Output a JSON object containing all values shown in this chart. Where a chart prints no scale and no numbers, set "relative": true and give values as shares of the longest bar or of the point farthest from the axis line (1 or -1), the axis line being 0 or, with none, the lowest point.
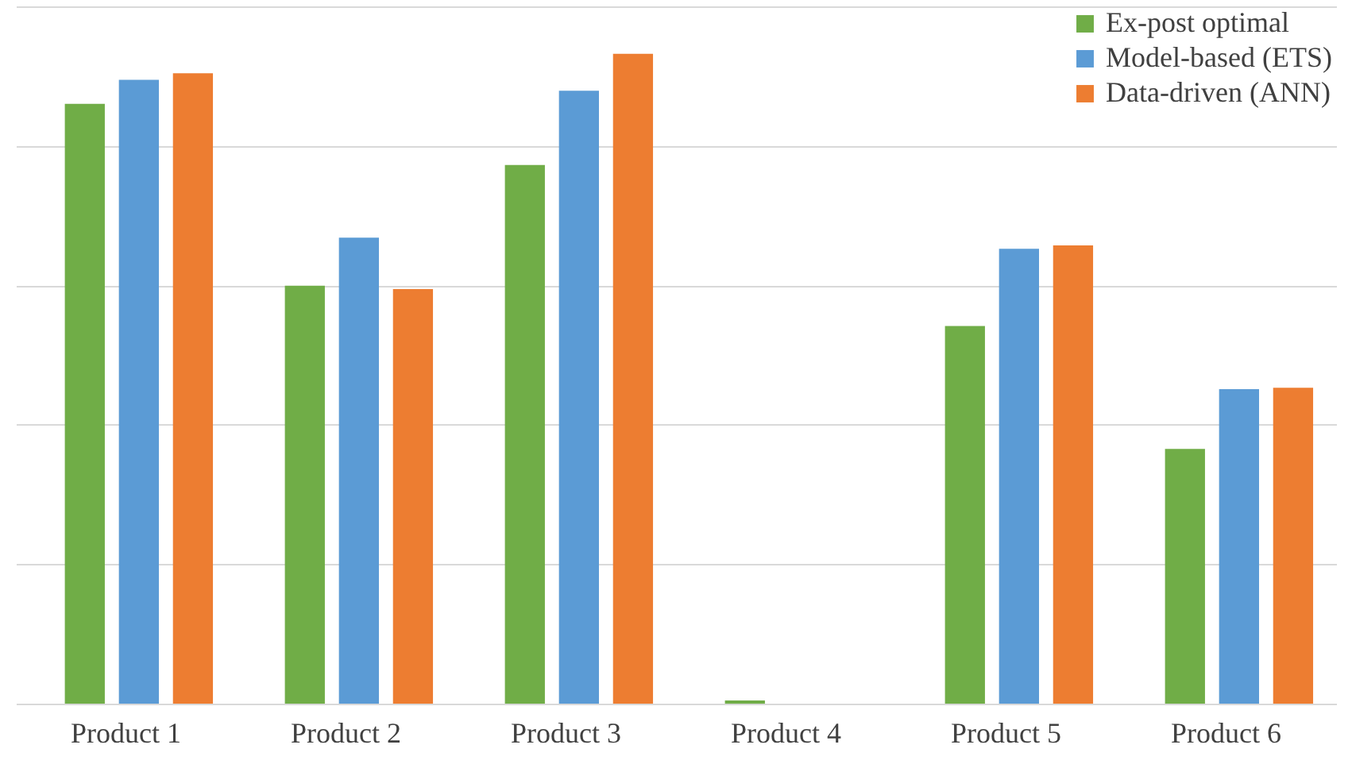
{
  "chart_data": {
    "type": "bar",
    "relative": true,
    "grid": "y",
    "legend": "top right",
    "categories": [
      "Product 1",
      "Product 2",
      "Product 3",
      "Product 4",
      "Product 5",
      "Product 6"
    ],
    "series": [
      {
        "name": "Ex-post optimal",
        "color": "#70ad47",
        "values": [
          0.923,
          0.643,
          0.829,
          0.005,
          0.581,
          0.392
        ]
      },
      {
        "name": "Model-based (ETS)",
        "color": "#5b9bd5",
        "values": [
          0.96,
          0.717,
          0.943,
          0,
          0.7,
          0.484
        ]
      },
      {
        "name": "Data-driven (ANN)",
        "color": "#ed7d31",
        "values": [
          0.97,
          0.638,
          1,
          0,
          0.705,
          0.486
        ]
      }
    ]
  }
}
